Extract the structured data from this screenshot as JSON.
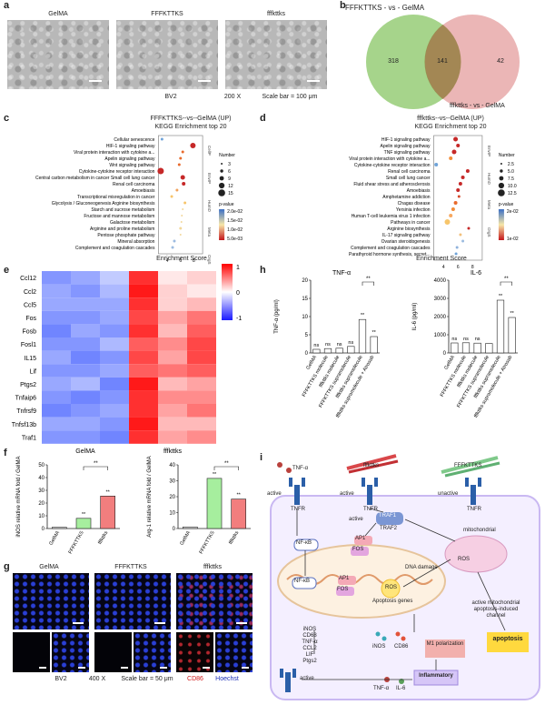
{
  "panel_labels": [
    "a",
    "b",
    "c",
    "d",
    "e",
    "f",
    "g",
    "h",
    "i"
  ],
  "panel_a": {
    "images": [
      "GelMA",
      "FFFKTTKS",
      "fffkttks"
    ],
    "caption_cell": "BV2",
    "caption_mag": "200 X",
    "caption_scale": "Scale bar = 100 μm"
  },
  "panel_b": {
    "left_title": "FFFKTTKS - vs - GelMA",
    "right_title": "fffkttks - vs - GelMA",
    "left_only": "318",
    "overlap": "141",
    "right_only": "42",
    "left_color": "#9ccf7e",
    "right_color": "#e8a9a9"
  },
  "panel_c": {
    "title1": "FFFKTTKS--vs--GelMA (UP)",
    "title2": "KEGG Enrichment top 20",
    "terms": [
      "Cellular senescence",
      "HIF-1 signaling pathway",
      "Viral protein interaction with cytokine a...",
      "Apelin signaling pathway",
      "Wnt signaling pathway",
      "Cytokine-cytokine receptor interaction",
      "Central carbon metabolism in cancer Small cell lung cancer",
      "Renal cell carcinoma",
      "Amoebiasis",
      "Transcriptional misregulation in cancer",
      "Glycolysis / Gluconeogenesis Arginine biosynthesis",
      "Starch and sucrose metabolism",
      "Fructose and mannose metabolism",
      "Galactose metabolism",
      "Arginine and proline metabolism",
      "Pentose phosphate pathway",
      "Mineral absorption",
      "Complement and coagulation cascades"
    ],
    "xlabel": "Enrichment Score",
    "legend_number_title": "Number",
    "legend_numbers": [
      "3",
      "6",
      "9",
      "12",
      "15"
    ],
    "legend_p_title": "p-value",
    "legend_p": [
      "2.0e-02",
      "1.5e-02",
      "1.0e-02",
      "5.0e-03"
    ],
    "group_labels": [
      "CellP",
      "EnvIP",
      "HumD",
      "Meta",
      "OrgS"
    ]
  },
  "panel_d": {
    "title1": "fffkttks--vs--GelMA (UP)",
    "title2": "KEGG Enrichment top 20",
    "terms": [
      "HIF-1 signaling pathway",
      "Apelin signaling pathway",
      "TNF signaling pathway",
      "Viral protein interaction with cytokine a...",
      "Cytokine-cytokine receptor interaction",
      "Renal cell carcinoma",
      "Small cell lung cancer",
      "Fluid shear stress and atherosclerosis",
      "Amoebiasis",
      "Amphetamine addiction",
      "Chagas disease",
      "Yersinia infection",
      "Human T-cell leukemia virus 1 infection",
      "Pathways in cancer",
      "Arginine biosynthesis",
      "IL-17 signaling pathway",
      "Ovarian steroidogenesis",
      "Complement and coagulation cascades",
      "Parathyroid hormone synthesis, secret..."
    ],
    "xlabel": "Enrichment Score",
    "legend_number_title": "Number",
    "legend_numbers": [
      "2.5",
      "5.0",
      "7.5",
      "10.0",
      "12.5"
    ],
    "legend_p_title": "p-value",
    "legend_p": [
      "2e-02",
      "1e-02"
    ],
    "group_labels": [
      "EnvIP",
      "HumD",
      "Meta",
      "OrgS"
    ]
  },
  "panel_e": {
    "genes": [
      "Ccl12",
      "Ccl2",
      "Ccl5",
      "Fos",
      "Fosb",
      "Fosl1",
      "IL15",
      "Lif",
      "Ptgs2",
      "Tnfaip6",
      "Tnfrsf9",
      "Tnfsf13b",
      "Traf1"
    ],
    "xlabels": [
      "GelMA",
      "fffkttks"
    ],
    "scale_labels": [
      "1",
      "0",
      "-1"
    ]
  },
  "panel_f": {
    "left": {
      "ylabel": "iNOS relative mRNA fold / GelMA",
      "yticks": [
        "0",
        "10",
        "20",
        "30",
        "40",
        "50"
      ],
      "groups": [
        "GelMA",
        "FFFKTTKS",
        "fffkttks"
      ],
      "values": [
        1,
        8,
        25.5
      ],
      "colors": [
        "#e0e0e0",
        "#a6ee9e",
        "#f27e7e"
      ],
      "stars": [
        "",
        "**",
        "**"
      ],
      "bracket": "**"
    },
    "right": {
      "ylabel": "Arg-1 relative mRNA fold / GelMA",
      "yticks": [
        "0",
        "10",
        "20",
        "30",
        "40"
      ],
      "groups": [
        "GelMA",
        "FFFKTTKS",
        "fffkttks"
      ],
      "values": [
        1,
        31.5,
        18.5
      ],
      "colors": [
        "#e0e0e0",
        "#a6ee9e",
        "#f27e7e"
      ],
      "stars": [
        "",
        "**",
        "**"
      ],
      "bracket": "**"
    }
  },
  "panel_g": {
    "titles": [
      "GelMA",
      "FFFKTTKS",
      "fffkttks"
    ],
    "caption_cell": "BV2",
    "caption_mag": "400 X",
    "caption_scale": "Scale bar = 50 μm",
    "legend_cd86": "CD86",
    "legend_hoechst": "Hoechst"
  },
  "panel_h": {
    "tnf": {
      "title": "TNF-α",
      "ylabel": "TNF-α (pg/ml)",
      "yticks": [
        "0",
        "5",
        "10",
        "15",
        "20"
      ],
      "ymax": 20,
      "values": [
        1.0,
        1.2,
        1.3,
        1.8,
        9.2,
        4.5
      ],
      "stars": [
        "ns",
        "ns",
        "ns",
        "ns",
        "**",
        "**"
      ],
      "bracket": "**"
    },
    "il6": {
      "title": "IL-6",
      "ylabel": "IL-6 (pg/ml)",
      "yticks": [
        "0",
        "1000",
        "2000",
        "3000",
        "4000"
      ],
      "ymax": 4000,
      "values": [
        550,
        560,
        540,
        520,
        2900,
        1950
      ],
      "stars": [
        "ns",
        "ns",
        "ns",
        "",
        "**",
        "**"
      ],
      "bracket": "**"
    },
    "categories": [
      "GelMA",
      "FFFKTTKS molecule",
      "fffkttks molecule",
      "FFFKTTKS supramolecule",
      "fffkttks supramolecule",
      "fffkttks supramolecule + Atrosab"
    ]
  },
  "panel_i": {
    "ligand_tnf": "TNF-α",
    "peptide_d": "fffkttks",
    "peptide_l": "FFFKTTKS",
    "receptor": "TNFR",
    "active": "active",
    "unactive": "unactive",
    "traf": "TRAF1",
    "traf2": "TRAF2",
    "nfkb": "NF-κB",
    "ap1": "AP1",
    "fos": "FOS",
    "dna_damage": "DNA damage",
    "ros": "ROS",
    "mito": "mitochondrial",
    "apoptosis_genes": "Apoptosis genes",
    "gene_list": [
      "iNOS",
      "CD68",
      "TNF-α",
      "CCL2",
      "LIF",
      "Ptgs2"
    ],
    "markers_inos": "iNOS",
    "markers_cd86": "CD86",
    "m1": "M1 polarization",
    "mito_text": "active mitochondrial apoptosis-induced channel",
    "apoptosis": "apoptosis",
    "inflammatory": "Inflammatory",
    "out_tnf": "TNF-α",
    "out_il6": "IL-6"
  }
}
